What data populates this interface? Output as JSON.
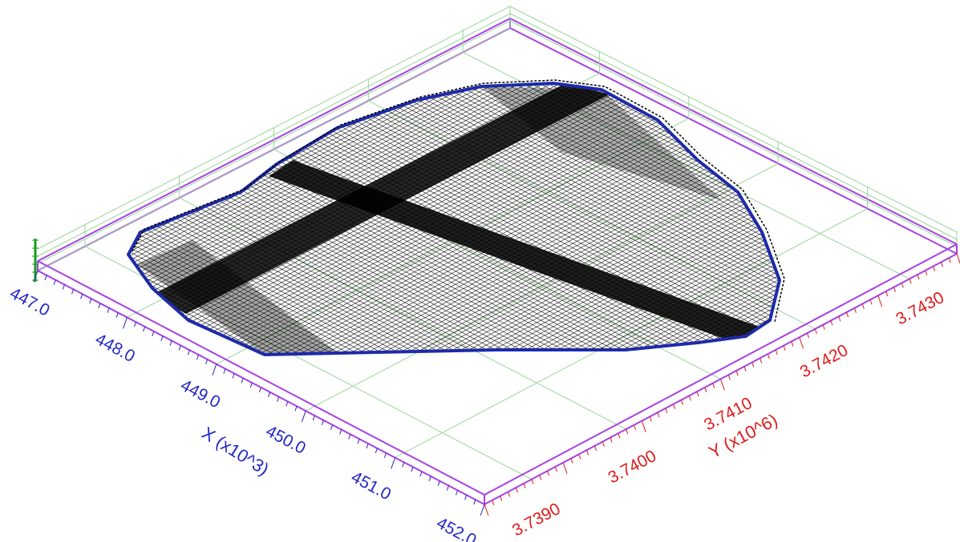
{
  "chart_data": {
    "type": "3d-mesh",
    "title": "",
    "x_axis": {
      "label": "X (x10^3)",
      "ticks": [
        "447.0",
        "448.0",
        "449.0",
        "450.0",
        "451.0",
        "452.0"
      ],
      "range": [
        447.0,
        452.0
      ]
    },
    "y_axis": {
      "label": "Y (x10^6)",
      "ticks": [
        "3.7390",
        "3.7400",
        "3.7410",
        "3.7420",
        "3.7430"
      ],
      "range": [
        3.7385,
        3.7435
      ]
    },
    "grid": true,
    "colors": {
      "box": "#a640e6",
      "grid": "#9ad49a",
      "x_axis": "#2426c8",
      "y_axis": "#e01a1a",
      "mesh": "#000000",
      "mesh_boundary": "#1e2aa8",
      "z_marker": "#1a9a1a"
    }
  }
}
